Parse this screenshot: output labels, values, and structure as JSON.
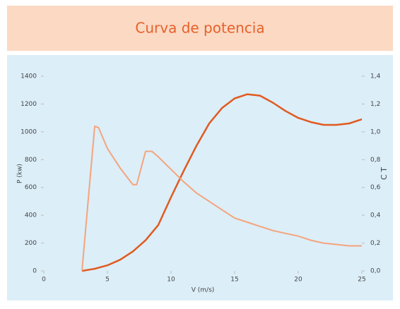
{
  "chart_data": {
    "type": "line",
    "title": "Curva de potencia",
    "x_label": "V (m/s)",
    "y_label": "P (kw)",
    "y2_label": "C T",
    "xlim": [
      0,
      25
    ],
    "xticks": [
      0,
      5,
      10,
      15,
      20,
      25
    ],
    "ylim": [
      0,
      1400
    ],
    "yticks": [
      0,
      200,
      400,
      600,
      800,
      1000,
      1200,
      1400
    ],
    "y2lim": [
      0,
      1.4
    ],
    "y2ticks": [
      {
        "value": 0,
        "label": "0,0"
      },
      {
        "value": 0.2,
        "label": "0,2"
      },
      {
        "value": 0.4,
        "label": "0,4"
      },
      {
        "value": 0.6,
        "label": "0,6"
      },
      {
        "value": 0.8,
        "label": "0,8"
      },
      {
        "value": 1.0,
        "label": "1,0"
      },
      {
        "value": 1.2,
        "label": "1,2"
      },
      {
        "value": 1.4,
        "label": "1,4"
      }
    ],
    "series": [
      {
        "color": "#e05a20",
        "x": [
          3,
          4,
          5,
          6,
          7,
          8,
          9,
          10,
          11,
          12,
          13,
          14,
          15,
          16,
          17,
          18,
          19,
          20,
          21,
          22,
          23,
          24,
          25
        ],
        "values": [
          0,
          15,
          40,
          80,
          140,
          220,
          330,
          530,
          720,
          900,
          1060,
          1170,
          1240,
          1270,
          1260,
          1210,
          1150,
          1100,
          1070,
          1050,
          1050,
          1060,
          1090
        ]
      },
      {
        "color": "#f4a47c",
        "axis": "y2",
        "x": [
          3,
          4,
          4.3,
          5,
          6,
          7,
          7.3,
          8,
          8.5,
          9,
          10,
          11,
          12,
          13,
          14,
          15,
          16,
          17,
          18,
          19,
          20,
          21,
          22,
          23,
          24,
          25
        ],
        "values": [
          0,
          1.04,
          1.03,
          0.88,
          0.74,
          0.62,
          0.62,
          0.86,
          0.86,
          0.82,
          0.73,
          0.64,
          0.56,
          0.5,
          0.44,
          0.38,
          0.35,
          0.32,
          0.29,
          0.27,
          0.25,
          0.22,
          0.2,
          0.19,
          0.18,
          0.18
        ]
      }
    ]
  }
}
